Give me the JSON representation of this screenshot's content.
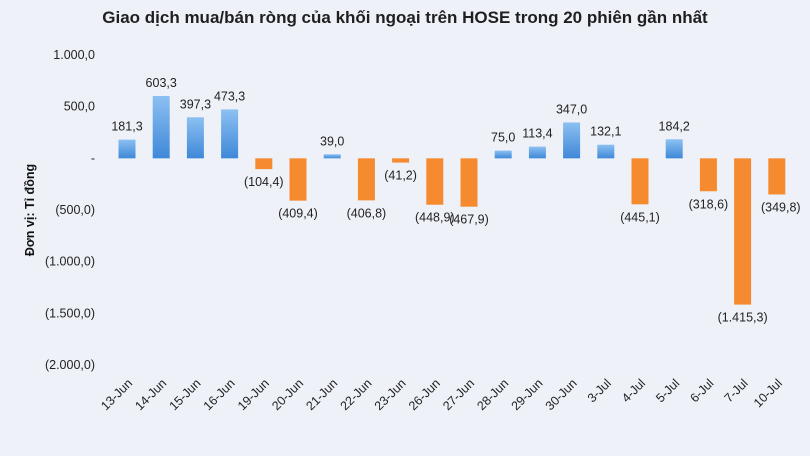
{
  "chart_data": {
    "type": "bar",
    "title": "Giao dịch mua/bán ròng của khối ngoại trên HOSE trong 20 phiên gần nhất",
    "ylabel": "Đơn vị: Tỉ đồng",
    "xlabel": "",
    "ylim": [
      -2000,
      1000
    ],
    "y_ticks": [
      1000,
      500,
      0,
      -500,
      -1000,
      -1500,
      -2000
    ],
    "y_tick_labels": [
      "1.000,0",
      "500,0",
      "-",
      "(500,0)",
      "(1.000,0)",
      "(1.500,0)",
      "(2.000,0)"
    ],
    "categories": [
      "13-Jun",
      "14-Jun",
      "15-Jun",
      "16-Jun",
      "19-Jun",
      "20-Jun",
      "21-Jun",
      "22-Jun",
      "23-Jun",
      "26-Jun",
      "27-Jun",
      "28-Jun",
      "29-Jun",
      "30-Jun",
      "3-Jul",
      "4-Jul",
      "5-Jul",
      "6-Jul",
      "7-Jul",
      "10-Jul"
    ],
    "values": [
      181.3,
      603.3,
      397.3,
      473.3,
      -104.4,
      -409.4,
      39.0,
      -406.8,
      -41.2,
      -448.9,
      -467.9,
      75.0,
      113.4,
      347.0,
      132.1,
      -445.1,
      184.2,
      -318.6,
      -1415.3,
      -349.8
    ],
    "data_labels": [
      "181,3",
      "603,3",
      "397,3",
      "473,3",
      "(104,4)",
      "(409,4)",
      "39,0",
      "(406,8)",
      "(41,2)",
      "(448,9)",
      "(467,9)",
      "75,0",
      "113,4",
      "347,0",
      "132,1",
      "(445,1)",
      "184,2",
      "(318,6)",
      "(1.415,3)",
      "(349,8)"
    ],
    "colors": {
      "positive": "#3f88d8",
      "positive_light": "#8cc0f2",
      "negative": "#f58a2e",
      "text": "#222222"
    },
    "grid": false,
    "legend": "none"
  }
}
